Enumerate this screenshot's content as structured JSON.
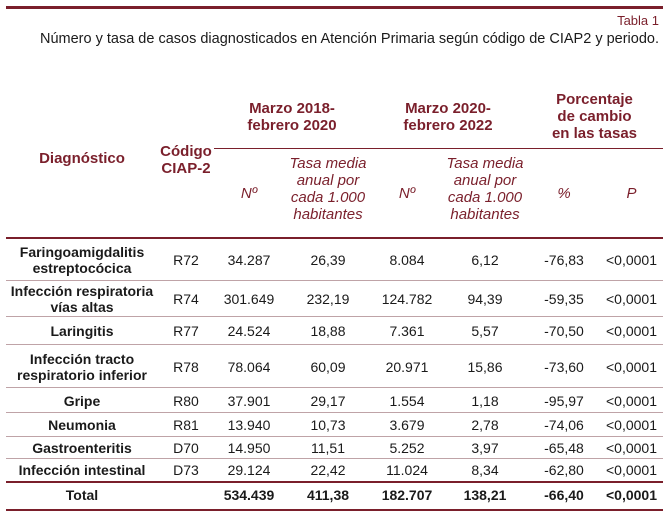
{
  "table_label": "Tabla 1",
  "caption": "Número y tasa de casos diagnosticados en Atención Primaria según código de CIAP2 y periodo.",
  "headers": {
    "diagnostico": "Diagnóstico",
    "codigo_line1": "Código",
    "codigo_line2": "CIAP-2",
    "period1_line1": "Marzo 2018-",
    "period1_line2": "febrero 2020",
    "period2_line1": "Marzo 2020-",
    "period2_line2": "febrero 2022",
    "pct_line1": "Porcentaje",
    "pct_line2": "de cambio",
    "pct_line3": "en las tasas",
    "n1": "Nº",
    "tasa1_line1": "Tasa media",
    "tasa1_line2": "anual por",
    "tasa1_line3": "cada 1.000",
    "tasa1_line4": "habitantes",
    "n2": "Nº",
    "tasa2_line1": "Tasa media",
    "tasa2_line2": "anual por",
    "tasa2_line3": "cada 1.000",
    "tasa2_line4": "habitantes",
    "pct": "%",
    "p": "P"
  },
  "rows": [
    {
      "diag1": "Faringoamigdalitis",
      "diag2": "estreptocócica",
      "code": "R72",
      "n1": "34.287",
      "t1": "26,39",
      "n2": "8.084",
      "t2": "6,12",
      "pct": "-76,83",
      "p": "<0,0001"
    },
    {
      "diag1": "Infección respiratoria",
      "diag2": "vías altas",
      "code": "R74",
      "n1": "301.649",
      "t1": "232,19",
      "n2": "124.782",
      "t2": "94,39",
      "pct": "-59,35",
      "p": "<0,0001"
    },
    {
      "diag1": "Laringitis",
      "diag2": "",
      "code": "R77",
      "n1": "24.524",
      "t1": "18,88",
      "n2": "7.361",
      "t2": "5,57",
      "pct": "-70,50",
      "p": "<0,0001"
    },
    {
      "diag1": "Infección tracto",
      "diag2": "respiratorio inferior",
      "code": "R78",
      "n1": "78.064",
      "t1": "60,09",
      "n2": "20.971",
      "t2": "15,86",
      "pct": "-73,60",
      "p": "<0,0001"
    },
    {
      "diag1": "Gripe",
      "diag2": "",
      "code": "R80",
      "n1": "37.901",
      "t1": "29,17",
      "n2": "1.554",
      "t2": "1,18",
      "pct": "-95,97",
      "p": "<0,0001"
    },
    {
      "diag1": "Neumonia",
      "diag2": "",
      "code": "R81",
      "n1": "13.940",
      "t1": "10,73",
      "n2": "3.679",
      "t2": "2,78",
      "pct": "-74,06",
      "p": "<0,0001"
    },
    {
      "diag1": "Gastroenteritis",
      "diag2": "",
      "code": "D70",
      "n1": "14.950",
      "t1": "11,51",
      "n2": "5.252",
      "t2": "3,97",
      "pct": "-65,48",
      "p": "<0,0001"
    },
    {
      "diag1": "Infección intestinal",
      "diag2": "",
      "code": "D73",
      "n1": "29.124",
      "t1": "22,42",
      "n2": "11.024",
      "t2": "8,34",
      "pct": "-62,80",
      "p": "<0,0001"
    }
  ],
  "total": {
    "label": "Total",
    "n1": "534.439",
    "t1": "411,38",
    "n2": "182.707",
    "t2": "138,21",
    "pct": "-66,40",
    "p": "<0,0001"
  }
}
